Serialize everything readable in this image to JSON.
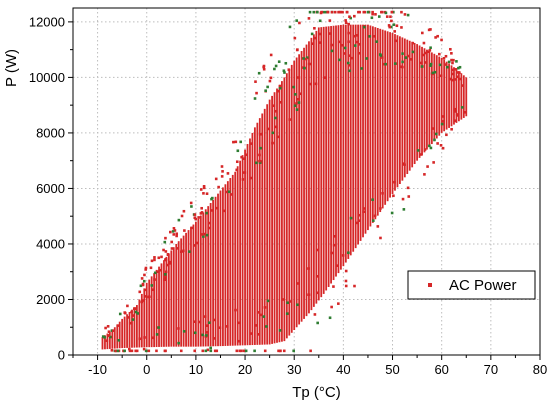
{
  "chart_data": {
    "type": "scatter",
    "title": "",
    "xlabel": "Tp (°C)",
    "ylabel": "P (W)",
    "xlim": [
      -15,
      80
    ],
    "ylim": [
      0,
      12500
    ],
    "xticks": [
      -10,
      0,
      10,
      20,
      30,
      40,
      50,
      60,
      70,
      80
    ],
    "yticks": [
      0,
      2000,
      4000,
      6000,
      8000,
      10000,
      12000
    ],
    "grid": true,
    "grid_style": "dotted",
    "legend_position": "bottom-right",
    "series": [
      {
        "name": "AC Power",
        "color": "#d62728",
        "accent_color": "#2e7d32",
        "marker": "square",
        "envelope_lower": [
          [
            -9,
            200
          ],
          [
            -5,
            250
          ],
          [
            0,
            280
          ],
          [
            5,
            300
          ],
          [
            10,
            300
          ],
          [
            15,
            320
          ],
          [
            20,
            350
          ],
          [
            25,
            380
          ],
          [
            28,
            500
          ],
          [
            30,
            900
          ],
          [
            33,
            1500
          ],
          [
            36,
            2200
          ],
          [
            40,
            3200
          ],
          [
            45,
            4500
          ],
          [
            50,
            5800
          ],
          [
            55,
            7000
          ],
          [
            60,
            8000
          ],
          [
            65,
            8600
          ]
        ],
        "envelope_upper": [
          [
            -9,
            650
          ],
          [
            -7,
            900
          ],
          [
            -5,
            1300
          ],
          [
            -2,
            1800
          ],
          [
            0,
            2600
          ],
          [
            3,
            3300
          ],
          [
            6,
            4000
          ],
          [
            10,
            4800
          ],
          [
            14,
            5700
          ],
          [
            18,
            6600
          ],
          [
            20,
            7400
          ],
          [
            22,
            8200
          ],
          [
            25,
            9200
          ],
          [
            28,
            10000
          ],
          [
            30,
            10600
          ],
          [
            33,
            11300
          ],
          [
            35,
            11800
          ],
          [
            40,
            11900
          ],
          [
            45,
            11900
          ],
          [
            50,
            11600
          ],
          [
            55,
            11200
          ],
          [
            60,
            10700
          ],
          [
            63,
            10300
          ],
          [
            65,
            10000
          ],
          [
            67,
            9800
          ],
          [
            69,
            9500
          ]
        ]
      }
    ]
  }
}
